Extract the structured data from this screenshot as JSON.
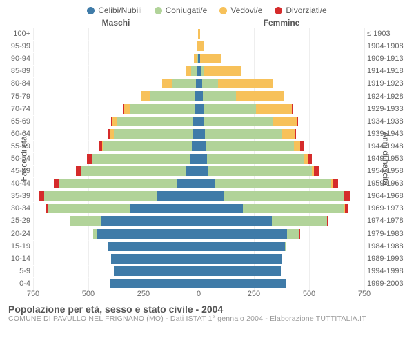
{
  "chart": {
    "type": "population-pyramid",
    "legend": [
      {
        "label": "Celibi/Nubili",
        "color": "#3f7ba8"
      },
      {
        "label": "Coniugati/e",
        "color": "#b1d399"
      },
      {
        "label": "Vedovi/e",
        "color": "#f7c15a"
      },
      {
        "label": "Divorziati/e",
        "color": "#d52b2b"
      }
    ],
    "header_male": "Maschi",
    "header_female": "Femmine",
    "y_axis_label": "Fasce di età",
    "y_axis_label_right": "Anni di nascita",
    "x_max": 750,
    "x_ticks": [
      750,
      500,
      250,
      0,
      250,
      500,
      750
    ],
    "background_color": "#ffffff",
    "grid_color": "#eeeeee",
    "divider_color": "#ffffff",
    "age_bands": [
      {
        "age": "100+",
        "birth": "≤ 1903",
        "m": [
          0,
          0,
          1,
          0
        ],
        "f": [
          0,
          0,
          3,
          0
        ]
      },
      {
        "age": "95-99",
        "birth": "1904-1908",
        "m": [
          0,
          0,
          5,
          0
        ],
        "f": [
          1,
          0,
          22,
          0
        ]
      },
      {
        "age": "90-94",
        "birth": "1909-1913",
        "m": [
          2,
          4,
          16,
          0
        ],
        "f": [
          4,
          2,
          95,
          0
        ]
      },
      {
        "age": "85-89",
        "birth": "1914-1918",
        "m": [
          4,
          28,
          27,
          0
        ],
        "f": [
          7,
          12,
          170,
          0
        ]
      },
      {
        "age": "80-84",
        "birth": "1919-1923",
        "m": [
          10,
          110,
          45,
          0
        ],
        "f": [
          15,
          70,
          250,
          2
        ]
      },
      {
        "age": "75-79",
        "birth": "1924-1928",
        "m": [
          15,
          205,
          40,
          2
        ],
        "f": [
          18,
          150,
          215,
          3
        ]
      },
      {
        "age": "70-74",
        "birth": "1929-1933",
        "m": [
          18,
          290,
          32,
          3
        ],
        "f": [
          22,
          235,
          165,
          4
        ]
      },
      {
        "age": "65-69",
        "birth": "1934-1938",
        "m": [
          22,
          345,
          25,
          5
        ],
        "f": [
          25,
          310,
          110,
          6
        ]
      },
      {
        "age": "60-64",
        "birth": "1939-1943",
        "m": [
          25,
          360,
          15,
          8
        ],
        "f": [
          28,
          350,
          55,
          8
        ]
      },
      {
        "age": "55-59",
        "birth": "1944-1948",
        "m": [
          30,
          400,
          8,
          15
        ],
        "f": [
          30,
          400,
          30,
          15
        ]
      },
      {
        "age": "50-54",
        "birth": "1949-1953",
        "m": [
          40,
          440,
          5,
          20
        ],
        "f": [
          35,
          440,
          18,
          20
        ]
      },
      {
        "age": "45-49",
        "birth": "1954-1958",
        "m": [
          55,
          475,
          3,
          22
        ],
        "f": [
          42,
          470,
          10,
          22
        ]
      },
      {
        "age": "40-44",
        "birth": "1959-1963",
        "m": [
          95,
          535,
          2,
          25
        ],
        "f": [
          70,
          530,
          6,
          25
        ]
      },
      {
        "age": "35-39",
        "birth": "1964-1968",
        "m": [
          185,
          515,
          1,
          22
        ],
        "f": [
          115,
          540,
          3,
          25
        ]
      },
      {
        "age": "30-34",
        "birth": "1969-1973",
        "m": [
          310,
          370,
          0,
          12
        ],
        "f": [
          200,
          460,
          1,
          15
        ]
      },
      {
        "age": "25-29",
        "birth": "1974-1978",
        "m": [
          440,
          140,
          0,
          4
        ],
        "f": [
          330,
          250,
          0,
          6
        ]
      },
      {
        "age": "20-24",
        "birth": "1979-1983",
        "m": [
          460,
          18,
          0,
          0
        ],
        "f": [
          400,
          55,
          0,
          1
        ]
      },
      {
        "age": "15-19",
        "birth": "1984-1988",
        "m": [
          410,
          0,
          0,
          0
        ],
        "f": [
          390,
          2,
          0,
          0
        ]
      },
      {
        "age": "10-14",
        "birth": "1989-1993",
        "m": [
          395,
          0,
          0,
          0
        ],
        "f": [
          375,
          0,
          0,
          0
        ]
      },
      {
        "age": "5-9",
        "birth": "1994-1998",
        "m": [
          385,
          0,
          0,
          0
        ],
        "f": [
          370,
          0,
          0,
          0
        ]
      },
      {
        "age": "0-4",
        "birth": "1999-2003",
        "m": [
          400,
          0,
          0,
          0
        ],
        "f": [
          395,
          0,
          0,
          0
        ]
      }
    ],
    "title": "Popolazione per età, sesso e stato civile - 2004",
    "subtitle": "COMUNE DI PAVULLO NEL FRIGNANO (MO) - Dati ISTAT 1° gennaio 2004 - Elaborazione TUTTITALIA.IT"
  }
}
